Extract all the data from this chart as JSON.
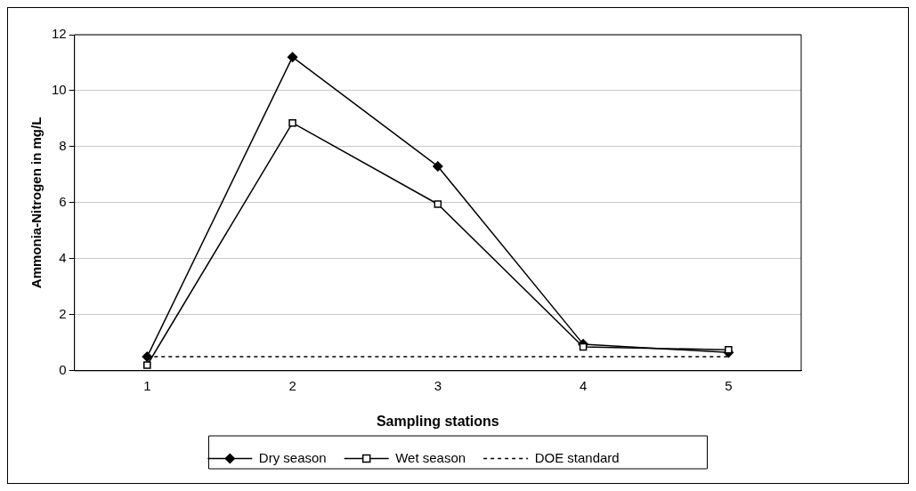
{
  "chart_data": {
    "type": "line",
    "xlabel": "Sampling stations",
    "ylabel": "Ammonia-Nitrogen in mg/L",
    "categories": [
      "1",
      "2",
      "3",
      "4",
      "5"
    ],
    "series": [
      {
        "name": "Dry season",
        "color": "#000000",
        "values": [
          0.5,
          11.2,
          7.3,
          0.95,
          0.65
        ],
        "marker": "diamond",
        "line_style": "solid"
      },
      {
        "name": "Wet season",
        "color": "#000000",
        "values": [
          0.2,
          8.85,
          5.95,
          0.85,
          0.75
        ],
        "marker": "square",
        "line_style": "solid"
      },
      {
        "name": "DOE standard",
        "color": "#000000",
        "values": [
          0.5,
          0.5,
          0.5,
          0.5,
          0.5
        ],
        "marker": "none",
        "line_style": "dotted"
      }
    ],
    "ylim": [
      0,
      12
    ],
    "yticks": [
      0,
      2,
      4,
      6,
      8,
      10,
      12
    ],
    "grid": "y",
    "legend": "bottom"
  }
}
